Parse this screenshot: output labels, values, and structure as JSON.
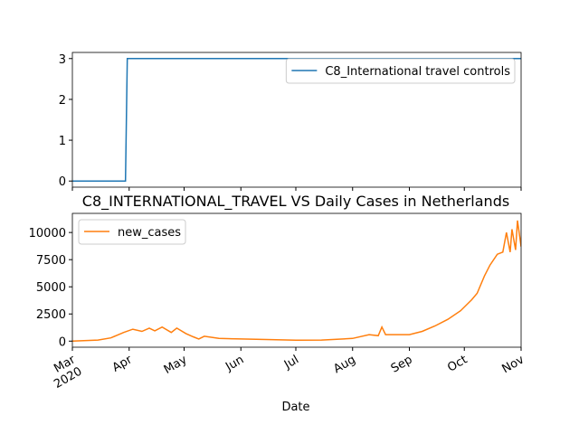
{
  "chart_data": [
    {
      "type": "line",
      "series": [
        {
          "name": "C8_International travel controls",
          "color": "#1f77b4",
          "x": [
            "2020-03-01",
            "2020-03-30",
            "2020-03-31",
            "2020-11-01"
          ],
          "values": [
            0,
            0,
            3,
            3
          ]
        }
      ],
      "xlim": [
        "2020-03-01",
        "2020-11-01"
      ],
      "ylim": [
        -0.15,
        3.15
      ],
      "yticks": [
        0,
        1,
        2,
        3
      ],
      "legend": "upper right"
    },
    {
      "type": "line",
      "title": "C8_INTERNATIONAL_TRAVEL VS Daily Cases in Netherlands",
      "xlabel": "Date",
      "series": [
        {
          "name": "new_cases",
          "color": "#ff7f0e",
          "x": [
            "2020-03-01",
            "2020-03-15",
            "2020-03-22",
            "2020-03-29",
            "2020-04-03",
            "2020-04-08",
            "2020-04-12",
            "2020-04-15",
            "2020-04-19",
            "2020-04-24",
            "2020-04-27",
            "2020-05-02",
            "2020-05-06",
            "2020-05-09",
            "2020-05-12",
            "2020-05-20",
            "2020-06-01",
            "2020-06-15",
            "2020-07-01",
            "2020-07-15",
            "2020-08-01",
            "2020-08-10",
            "2020-08-15",
            "2020-08-17",
            "2020-08-19",
            "2020-09-01",
            "2020-09-08",
            "2020-09-15",
            "2020-09-22",
            "2020-09-29",
            "2020-10-05",
            "2020-10-08",
            "2020-10-12",
            "2020-10-15",
            "2020-10-19",
            "2020-10-22",
            "2020-10-24",
            "2020-10-26",
            "2020-10-27",
            "2020-10-29",
            "2020-10-30",
            "2020-11-01"
          ],
          "values": [
            0,
            100,
            300,
            800,
            1100,
            900,
            1200,
            950,
            1300,
            800,
            1200,
            700,
            400,
            200,
            450,
            250,
            200,
            150,
            80,
            100,
            250,
            600,
            500,
            1300,
            600,
            600,
            900,
            1400,
            2000,
            2800,
            3800,
            4400,
            6000,
            7000,
            8000,
            8200,
            10000,
            8200,
            10300,
            8400,
            11100,
            8700
          ]
        }
      ],
      "xlim": [
        "2020-03-01",
        "2020-11-01"
      ],
      "xticks": [
        {
          "value": "2020-03-01",
          "label": "Mar\n2020"
        },
        {
          "value": "2020-04-01",
          "label": "Apr"
        },
        {
          "value": "2020-05-01",
          "label": "May"
        },
        {
          "value": "2020-06-01",
          "label": "Jun"
        },
        {
          "value": "2020-07-01",
          "label": "Jul"
        },
        {
          "value": "2020-08-01",
          "label": "Aug"
        },
        {
          "value": "2020-09-01",
          "label": "Sep"
        },
        {
          "value": "2020-10-01",
          "label": "Oct"
        },
        {
          "value": "2020-11-01",
          "label": "Nov"
        }
      ],
      "ylim": [
        -560,
        11760
      ],
      "yticks": [
        0,
        2500,
        5000,
        7500,
        10000
      ],
      "legend": "upper left"
    }
  ]
}
